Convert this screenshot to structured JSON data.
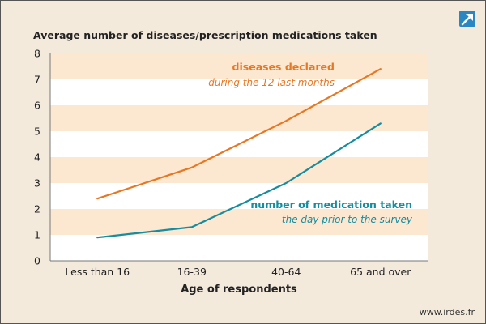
{
  "chart_data": {
    "type": "line",
    "title": "Average number of diseases/prescription medications taken",
    "xlabel": "Age of respondents",
    "ylabel": "",
    "categories": [
      "Less than 16",
      "16-39",
      "40-64",
      "65 and over"
    ],
    "ylim": [
      0,
      8
    ],
    "yticks": [
      0,
      1,
      2,
      3,
      4,
      5,
      6,
      7,
      8
    ],
    "grid": "alternating horizontal bands",
    "series": [
      {
        "name": "diseases declared",
        "subtitle": "during the 12 last months",
        "color": "#e87722",
        "values": [
          2.4,
          3.6,
          5.4,
          7.4
        ]
      },
      {
        "name": "number of medication taken",
        "subtitle": "the day prior to the survey",
        "color": "#168d9e",
        "values": [
          0.9,
          1.3,
          3.0,
          5.3
        ]
      }
    ]
  },
  "footer": {
    "source": "www.irdes.fr"
  },
  "logo": {
    "icon": "arrow-up-right-icon",
    "color": "#2a87c4"
  }
}
